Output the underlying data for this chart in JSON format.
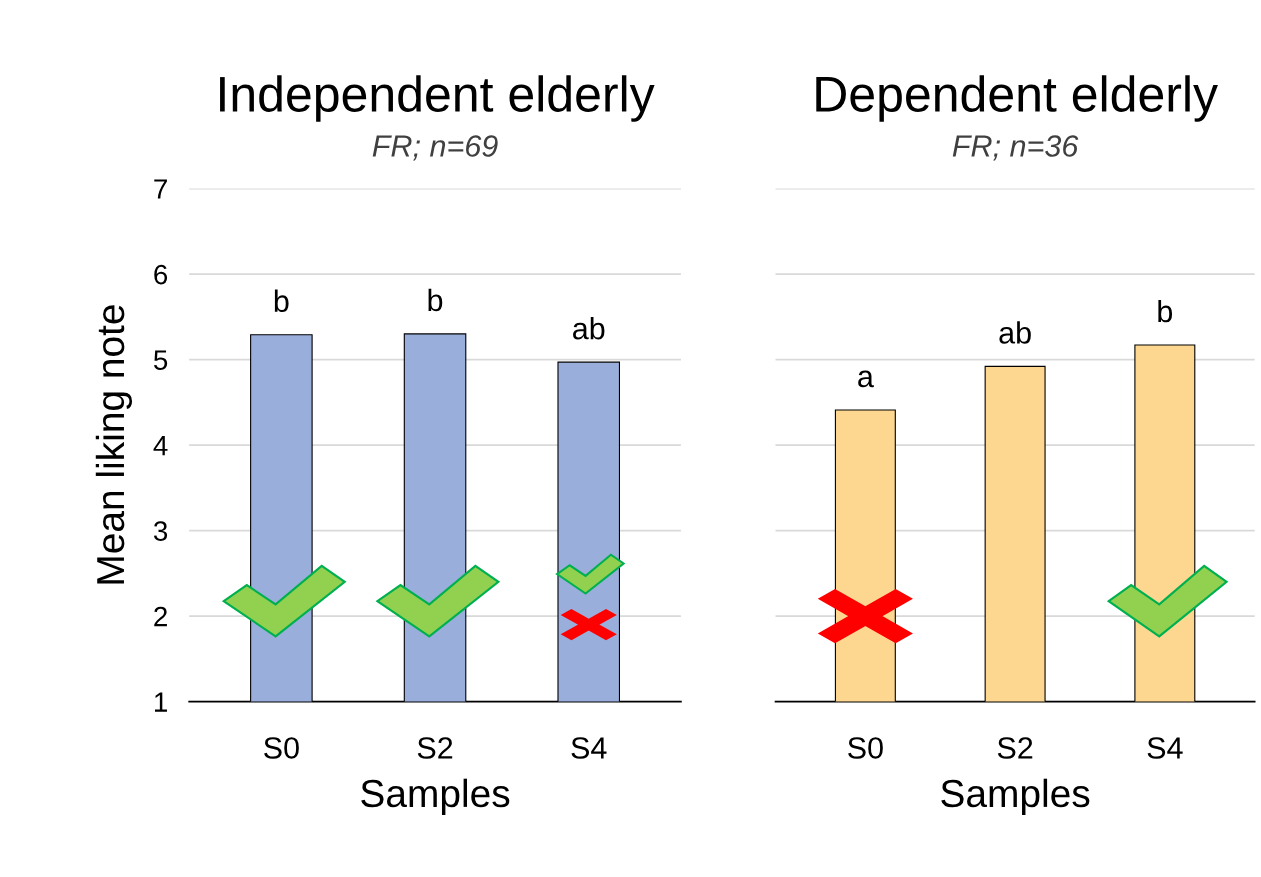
{
  "chart_data": [
    {
      "type": "bar",
      "title": "Independent elderly",
      "subtitle": "FR; n=69",
      "xlabel": "Samples",
      "ylabel": "Mean liking note",
      "categories": [
        "S0",
        "S2",
        "S4"
      ],
      "values": [
        5.29,
        5.3,
        4.97
      ],
      "color": "#9aaedc",
      "ylim": [
        1,
        7
      ],
      "yticks": [
        1,
        2,
        3,
        4,
        5,
        6,
        7
      ],
      "grid": "y",
      "annotations": [
        {
          "text": "b",
          "x": "S0",
          "y": 5.29
        },
        {
          "text": "b",
          "x": "S2",
          "y": 5.3
        },
        {
          "text": "ab",
          "x": "S4",
          "y": 4.97
        }
      ]
    },
    {
      "type": "bar",
      "title": "Dependent elderly",
      "subtitle": "FR; n=36",
      "xlabel": "Samples",
      "categories": [
        "S0",
        "S2",
        "S4"
      ],
      "values": [
        4.41,
        4.92,
        5.17
      ],
      "color": "#fdd68f",
      "ylim": [
        1,
        7
      ],
      "yticks": [
        1,
        2,
        3,
        4,
        5,
        6,
        7
      ],
      "grid": "y",
      "tick_labels": "x",
      "annotations": [
        {
          "text": "a",
          "x": "S0",
          "y": 4.41
        },
        {
          "text": "ab",
          "x": "S2",
          "y": 4.92
        },
        {
          "text": "b",
          "x": "S4",
          "y": 5.17
        }
      ]
    }
  ]
}
